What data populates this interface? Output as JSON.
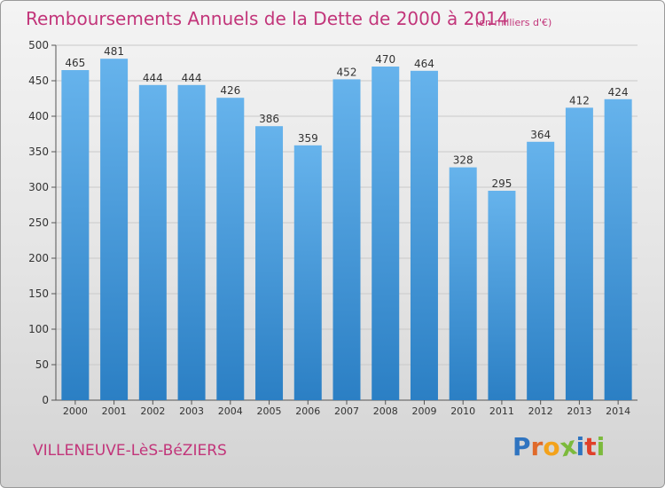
{
  "header": {
    "title": "Remboursements Annuels de la Dette de 2000 à 2014",
    "subtitle": "(en milliers d'€)"
  },
  "footer": {
    "city": "VILLENEUVE-LèS-BéZIERS",
    "logo_letters": [
      "P",
      "r",
      "o",
      "x",
      "i",
      "t",
      "i"
    ]
  },
  "colors": {
    "title": "#c2357a",
    "bar_top": "#66b3ec",
    "bar_bottom": "#2b7fc4",
    "grid": "#c9c9c9",
    "logo": [
      "#2f74c0",
      "#e06a2a",
      "#f3a21b",
      "#7cba3c",
      "#2f74c0",
      "#e0402a",
      "#7cba3c"
    ]
  },
  "chart_data": {
    "type": "bar",
    "title": "Remboursements Annuels de la Dette de 2000 à 2014",
    "subtitle": "(en milliers d'€)",
    "categories": [
      "2000",
      "2001",
      "2002",
      "2003",
      "2004",
      "2005",
      "2006",
      "2007",
      "2008",
      "2009",
      "2010",
      "2011",
      "2012",
      "2013",
      "2014"
    ],
    "values": [
      465,
      481,
      444,
      444,
      426,
      386,
      359,
      452,
      470,
      464,
      328,
      295,
      364,
      412,
      424
    ],
    "ylim": [
      0,
      500
    ],
    "yticks": [
      0,
      50,
      100,
      150,
      200,
      250,
      300,
      350,
      400,
      450,
      500
    ],
    "grid": true,
    "legend": "none"
  }
}
